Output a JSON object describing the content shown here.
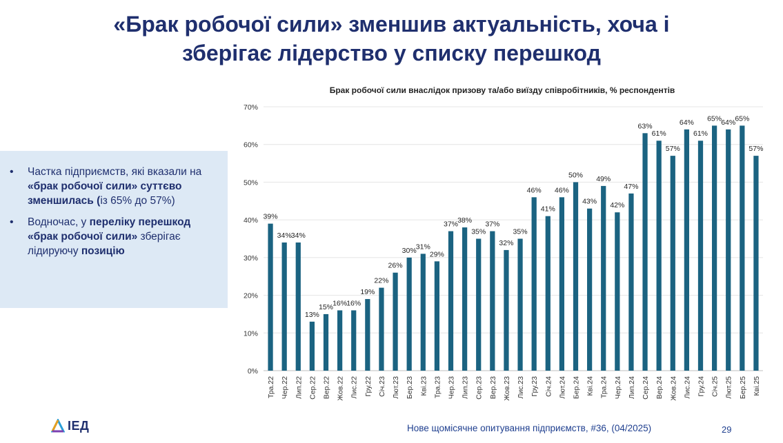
{
  "slide": {
    "title_line1": "«Брак робочої сили» зменшив актуальність, хоча і",
    "title_line2": "зберігає лідерство у списку перешкод",
    "footer": "Нове щомісячне опитування підприємств, #36, (04/2025)",
    "page_number": "29",
    "logo_text": "ІЕД",
    "colors": {
      "title": "#1f2f6e",
      "bar": "#1b6381",
      "panel_bg": "#dde9f5",
      "footer": "#1f3f8f"
    }
  },
  "panel": {
    "bullets": [
      {
        "parts": [
          {
            "text": "Частка підприємств, які вказали на ",
            "bold": false
          },
          {
            "text": "«брак робочої сили» суттєво зменшилась (",
            "bold": true
          },
          {
            "text": "із 65% до 57%)",
            "bold": false
          }
        ]
      },
      {
        "parts": [
          {
            "text": "Водночас, у ",
            "bold": false
          },
          {
            "text": "переліку перешкод «брак робочої сили» ",
            "bold": true
          },
          {
            "text": "зберігає лідируючу ",
            "bold": false
          },
          {
            "text": "позицію",
            "bold": true
          }
        ]
      }
    ]
  },
  "chart_data": {
    "type": "bar",
    "title": "Брак робочої сили внаслідок призову та/або виїзду співробітників, % респондентів",
    "categories": [
      "Тра.22",
      "Чер.22",
      "Лип.22",
      "Сер.22",
      "Вер.22",
      "Жов.22",
      "Лис.22",
      "Гру.22",
      "Січ.23",
      "Лют.23",
      "Бер.23",
      "Кві.23",
      "Тра.23",
      "Чер.23",
      "Лип.23",
      "Сер.23",
      "Вер.23",
      "Жов.23",
      "Лис.23",
      "Гру.23",
      "Січ.24",
      "Лют.24",
      "Бер.24",
      "Кві.24",
      "Тра.24",
      "Чер.24",
      "Лип.24",
      "Сер.24",
      "Вер.24",
      "Жов.24",
      "Лис.24",
      "Гру.24",
      "Січ.25",
      "Лют.25",
      "Бер.25",
      "Кві.25"
    ],
    "values": [
      39,
      34,
      34,
      13,
      15,
      16,
      16,
      19,
      22,
      26,
      30,
      31,
      29,
      37,
      38,
      35,
      37,
      32,
      35,
      46,
      41,
      46,
      50,
      43,
      49,
      42,
      47,
      63,
      61,
      57,
      64,
      61,
      65,
      64,
      65,
      57
    ],
    "value_labels": [
      "39%",
      "34%",
      "34%",
      "13%",
      "15%",
      "16%",
      "16%",
      "19%",
      "22%",
      "26%",
      "30%",
      "31%",
      "29%",
      "37%",
      "38%",
      "35%",
      "37%",
      "32%",
      "35%",
      "46%",
      "41%",
      "46%",
      "50%",
      "43%",
      "49%",
      "42%",
      "47%",
      "63%",
      "61%",
      "57%",
      "64%",
      "61%",
      "65%",
      "64%",
      "65%",
      "57%"
    ],
    "ylim": [
      0,
      70
    ],
    "yticks": [
      "0%",
      "10%",
      "20%",
      "30%",
      "40%",
      "50%",
      "60%",
      "70%"
    ],
    "grid": true,
    "legend": "none"
  }
}
